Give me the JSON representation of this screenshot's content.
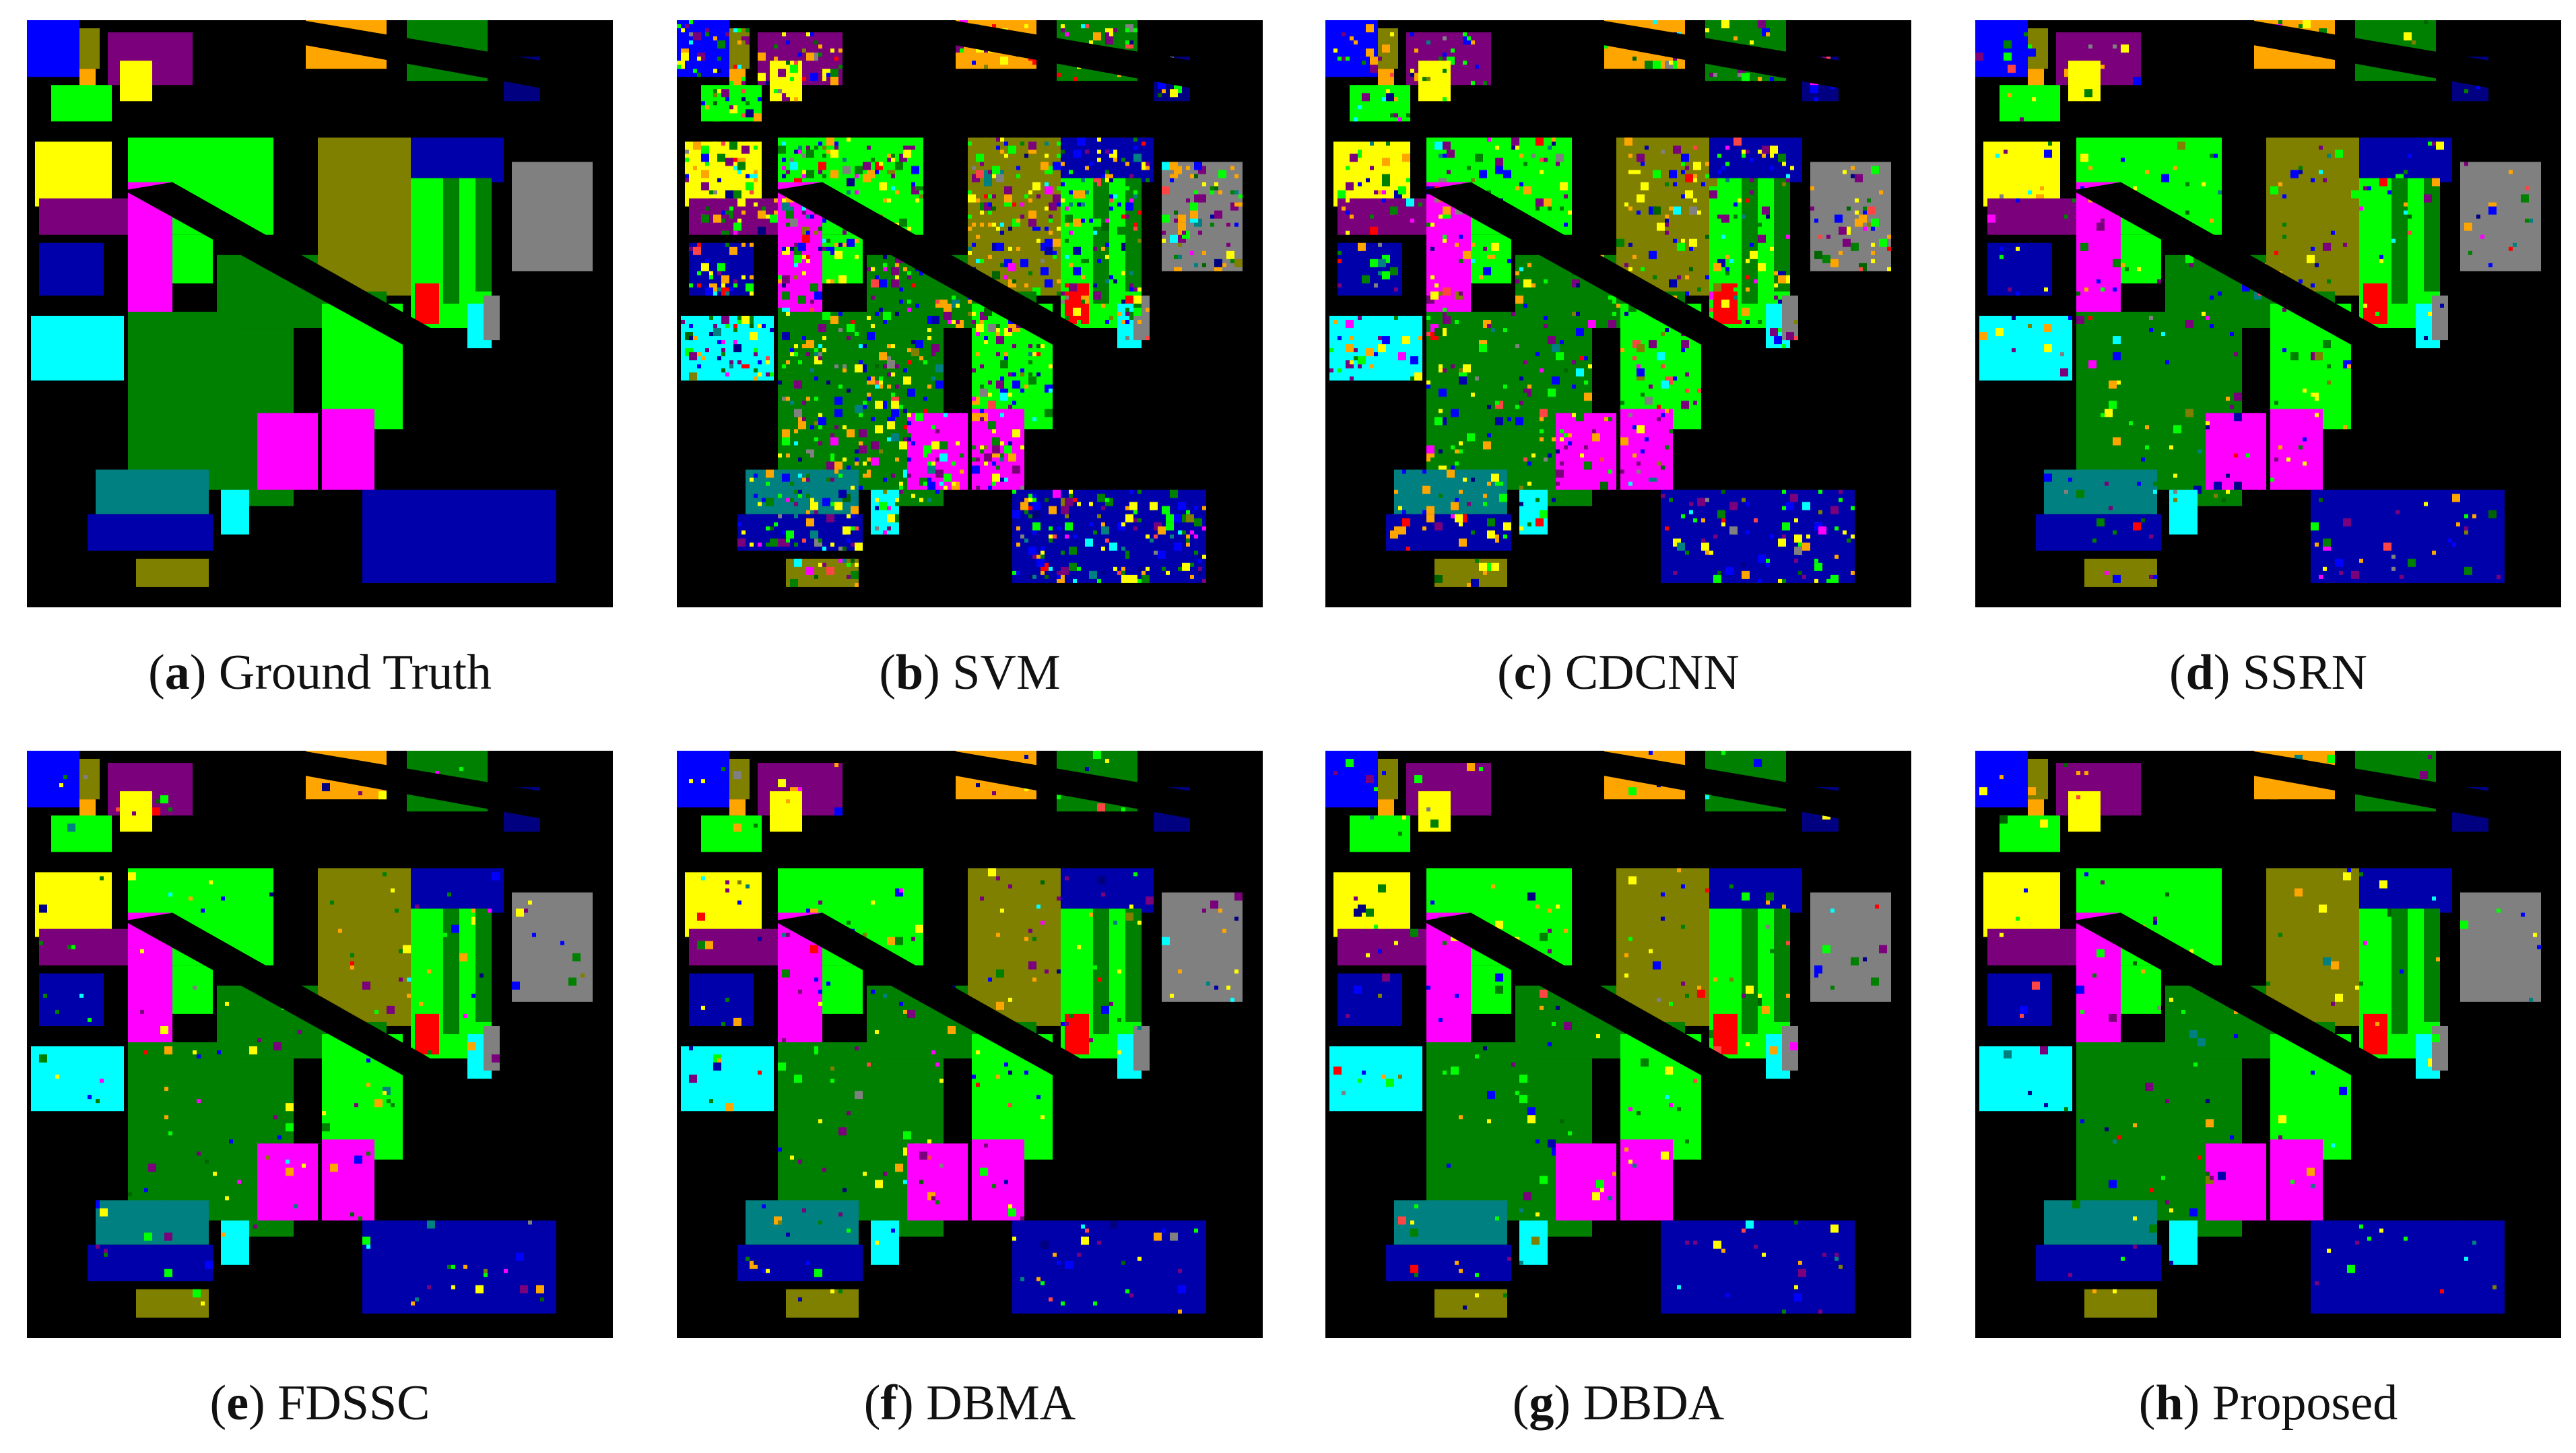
{
  "palette": {
    "background": "#000000",
    "alfalfa": "#0000ff",
    "corn_notill": "#00ff00",
    "corn_mintill": "#ffff00",
    "corn": "#7b007b",
    "grass_pasture": "#ffa500",
    "grass_trees": "#008000",
    "grass_pasture_mowed": "#000080",
    "hay_windrowed": "#808080",
    "oats": "#ff0000",
    "soybean_notill": "#7f7f00",
    "soybean_mintill": "#006400",
    "soybean_clean": "#ff00ff",
    "wheat": "#00ffff",
    "woods": "#008080",
    "buildings": "#0000aa",
    "stone_steel": "#ff4444"
  },
  "panels": [
    {
      "letter": "a",
      "title": "Ground Truth",
      "noise": 0.0
    },
    {
      "letter": "b",
      "title": "SVM",
      "noise": 0.3
    },
    {
      "letter": "c",
      "title": "CDCNN",
      "noise": 0.16
    },
    {
      "letter": "d",
      "title": "SSRN",
      "noise": 0.06
    },
    {
      "letter": "e",
      "title": "FDSSC",
      "noise": 0.035
    },
    {
      "letter": "f",
      "title": "DBMA",
      "noise": 0.05
    },
    {
      "letter": "g",
      "title": "DBDA",
      "noise": 0.04
    },
    {
      "letter": "h",
      "title": "Proposed",
      "noise": 0.025
    }
  ]
}
